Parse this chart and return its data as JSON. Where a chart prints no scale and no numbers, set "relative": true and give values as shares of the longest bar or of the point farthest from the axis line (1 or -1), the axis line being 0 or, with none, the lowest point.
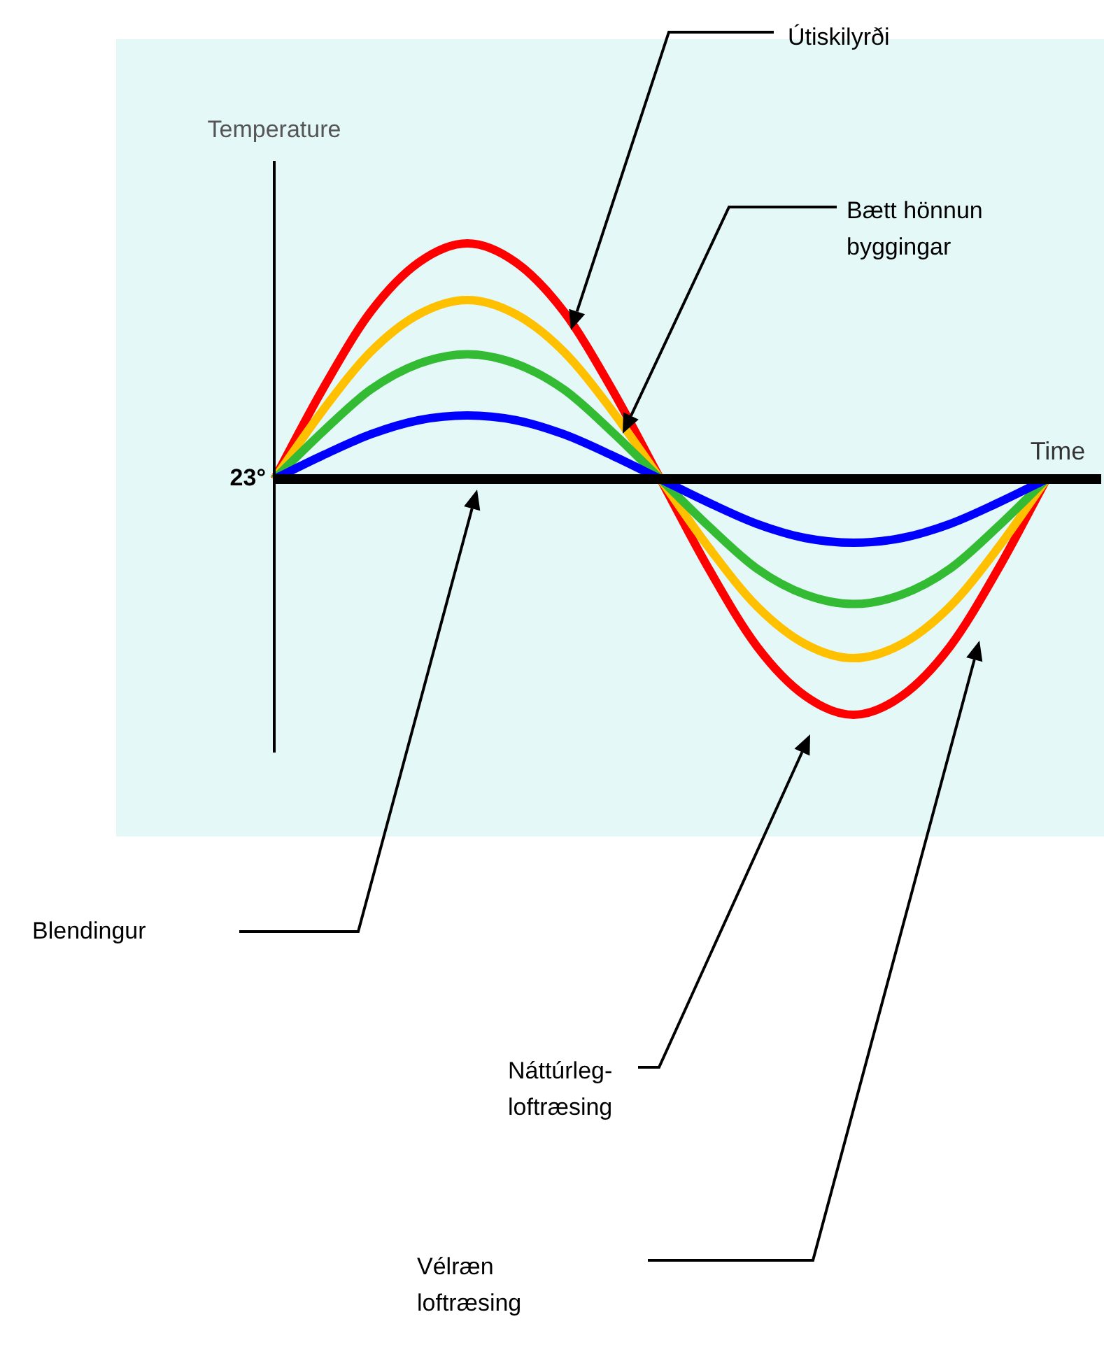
{
  "chart_data": {
    "type": "line",
    "relative": true,
    "xlabel": "Time",
    "ylabel": "Temperature",
    "categories": [
      null,
      null,
      null,
      null,
      null,
      null,
      null,
      null,
      null,
      null,
      null,
      null,
      null,
      null,
      null,
      null,
      null
    ],
    "series": [
      {
        "color": "#ff0000",
        "values": [
          0,
          0.38,
          0.71,
          0.92,
          1,
          0.92,
          0.71,
          0.38,
          0,
          -0.38,
          -0.71,
          -0.92,
          -1,
          -0.92,
          -0.71,
          -0.38,
          0
        ]
      },
      {
        "color": "#ffc000",
        "values": [
          0,
          0.29,
          0.54,
          0.7,
          0.76,
          0.7,
          0.54,
          0.29,
          0,
          -0.29,
          -0.54,
          -0.7,
          -0.76,
          -0.7,
          -0.54,
          -0.29,
          0
        ]
      },
      {
        "color": "#33bb33",
        "values": [
          0,
          0.2,
          0.38,
          0.49,
          0.53,
          0.49,
          0.38,
          0.2,
          0,
          -0.2,
          -0.38,
          -0.49,
          -0.53,
          -0.49,
          -0.38,
          -0.2,
          0
        ]
      },
      {
        "color": "#0000ff",
        "values": [
          0,
          0.1,
          0.19,
          0.25,
          0.27,
          0.25,
          0.19,
          0.1,
          0,
          -0.1,
          -0.19,
          -0.25,
          -0.27,
          -0.25,
          -0.19,
          -0.1,
          0
        ]
      }
    ],
    "annotations": [
      "Útiskilyrði",
      "Bætt hönnun byggingar",
      "Blendingur",
      "Náttúrleg-loftræsing",
      "Vélræn loftræsing",
      "23°"
    ],
    "marker": "none",
    "line_style": "solid"
  }
}
